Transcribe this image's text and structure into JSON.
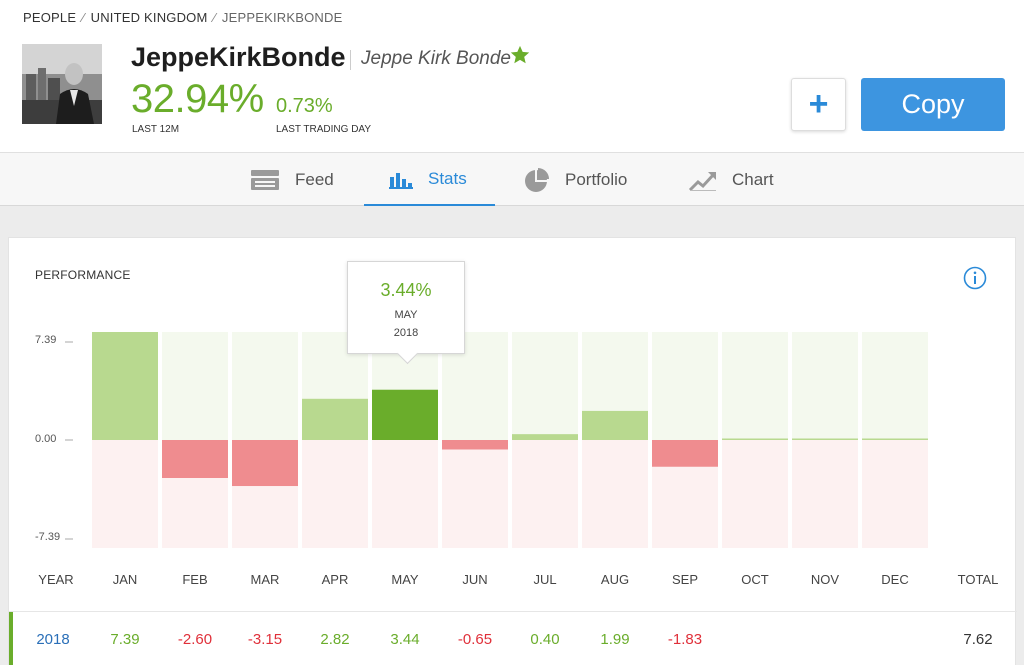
{
  "breadcrumb": {
    "items": [
      "PEOPLE",
      "UNITED KINGDOM",
      "JEPPEKIRKBONDE"
    ]
  },
  "profile": {
    "username": "JeppeKirkBonde",
    "full_name": "Jeppe Kirk Bonde",
    "gain_12m": "32.94%",
    "gain_12m_label": "LAST 12M",
    "gain_day": "0.73%",
    "gain_day_label": "LAST TRADING DAY"
  },
  "actions": {
    "plus_label": "+",
    "copy_label": "Copy"
  },
  "tabs": [
    {
      "label": "Feed",
      "icon": "feed-icon",
      "active": false
    },
    {
      "label": "Stats",
      "icon": "stats-icon",
      "active": true
    },
    {
      "label": "Portfolio",
      "icon": "portfolio-pie-icon",
      "active": false
    },
    {
      "label": "Chart",
      "icon": "chart-trend-icon",
      "active": false
    }
  ],
  "performance": {
    "title": "PERFORMANCE",
    "tooltip": {
      "value": "3.44%",
      "month": "MAY",
      "year": "2018"
    },
    "year_header": "YEAR",
    "total_header": "TOTAL",
    "row": {
      "year": "2018",
      "total": "7.62"
    }
  },
  "colors": {
    "positive": "#6aad2b",
    "negative": "#e0303a",
    "accent": "#3d95e0",
    "bar_pos": "#b8d98f",
    "bar_pos_active": "#6aad2b",
    "bar_neg": "#ef8c8f"
  },
  "chart_data": {
    "type": "bar",
    "categories": [
      "JAN",
      "FEB",
      "MAR",
      "APR",
      "MAY",
      "JUN",
      "JUL",
      "AUG",
      "SEP",
      "OCT",
      "NOV",
      "DEC"
    ],
    "values": [
      7.39,
      -2.6,
      -3.15,
      2.82,
      3.44,
      -0.65,
      0.4,
      1.99,
      -1.83,
      0,
      0,
      0
    ],
    "value_labels": [
      "7.39",
      "-2.60",
      "-3.15",
      "2.82",
      "3.44",
      "-0.65",
      "0.40",
      "1.99",
      "-1.83",
      "",
      "",
      ""
    ],
    "yticks": [
      "7.39",
      "0.00",
      "-7.39"
    ],
    "ylim": [
      -7.39,
      7.39
    ],
    "highlight": "MAY"
  }
}
